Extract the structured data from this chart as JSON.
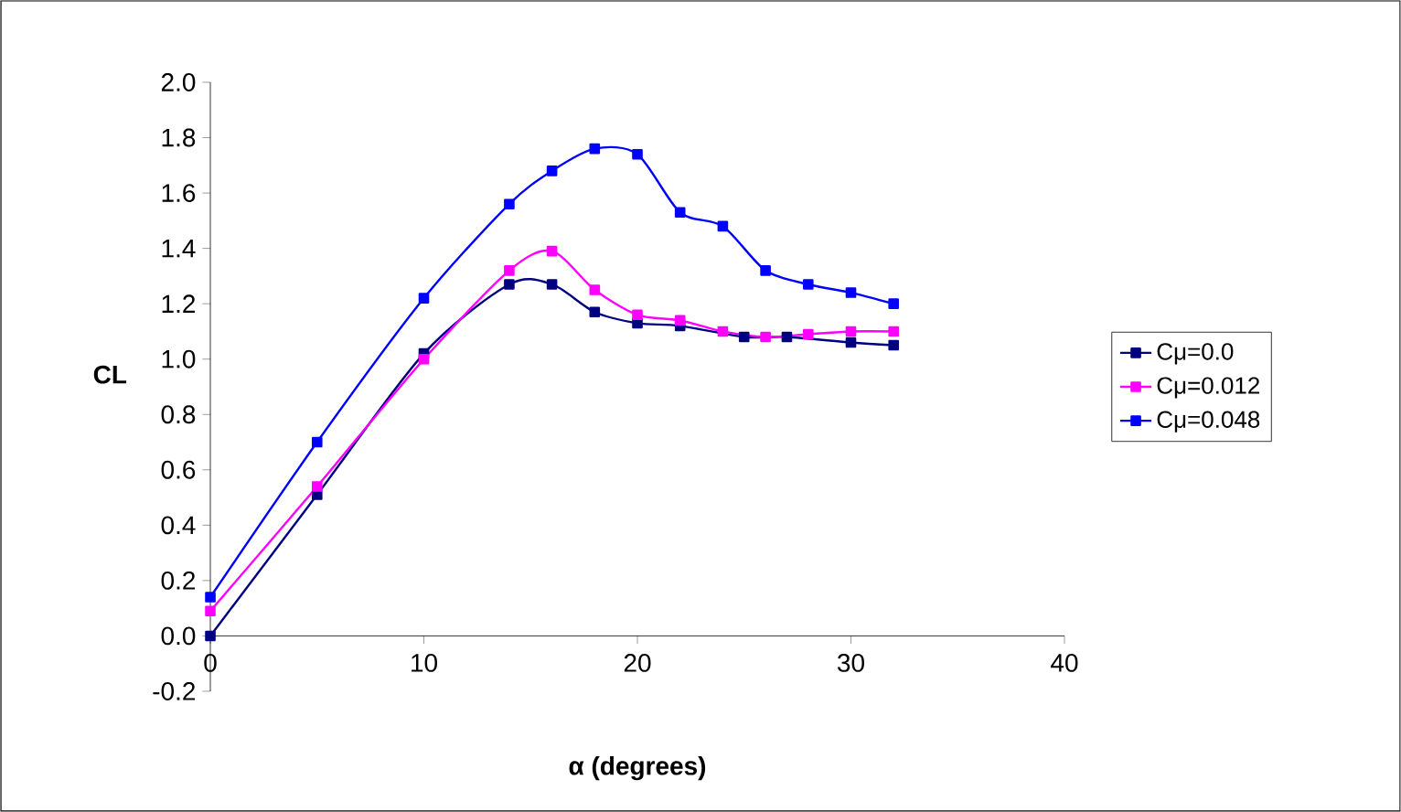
{
  "chart_data": {
    "type": "line",
    "xlabel": "α (degrees)",
    "ylabel": "CL",
    "xlim": [
      0,
      40
    ],
    "xticks": [
      0,
      10,
      20,
      30,
      40
    ],
    "ylim": [
      -0.2,
      2.0
    ],
    "yticks": [
      {
        "value": -0.2,
        "label": "-0.2"
      },
      {
        "value": 0,
        "label": "0.0"
      },
      {
        "value": 0.2,
        "label": "0.2"
      },
      {
        "value": 0.4,
        "label": "0.4"
      },
      {
        "value": 0.6,
        "label": "0.6"
      },
      {
        "value": 0.8,
        "label": "0.8"
      },
      {
        "value": 1.0,
        "label": "1.0"
      },
      {
        "value": 1.2,
        "label": "1.2"
      },
      {
        "value": 1.4,
        "label": "1.4"
      },
      {
        "value": 1.6,
        "label": "1.6"
      },
      {
        "value": 1.8,
        "label": "1.8"
      },
      {
        "value": 2.0,
        "label": "2.0"
      }
    ],
    "grid": false,
    "legend": "right",
    "marker": "square",
    "line_style": "solid",
    "series": [
      {
        "name": "Cμ=0.0",
        "color": "#000080",
        "x": [
          0,
          5,
          10,
          14,
          16,
          18,
          20,
          22,
          25,
          27,
          30,
          32
        ],
        "values": [
          0,
          0.51,
          1.02,
          1.27,
          1.27,
          1.17,
          1.13,
          1.12,
          1.08,
          1.08,
          1.06,
          1.05
        ]
      },
      {
        "name": "Cμ=0.012",
        "color": "#ff00ff",
        "x": [
          0,
          5,
          10,
          14,
          16,
          18,
          20,
          22,
          24,
          26,
          28,
          30,
          32
        ],
        "values": [
          0.09,
          0.54,
          1.0,
          1.32,
          1.39,
          1.25,
          1.16,
          1.14,
          1.1,
          1.08,
          1.09,
          1.1,
          1.1
        ]
      },
      {
        "name": "Cμ=0.048",
        "color": "#0000ff",
        "x": [
          0,
          5,
          10,
          14,
          16,
          18,
          20,
          22,
          24,
          26,
          28,
          30,
          32
        ],
        "values": [
          0.14,
          0.7,
          1.22,
          1.56,
          1.68,
          1.76,
          1.74,
          1.53,
          1.48,
          1.32,
          1.27,
          1.24,
          1.2
        ]
      }
    ]
  }
}
